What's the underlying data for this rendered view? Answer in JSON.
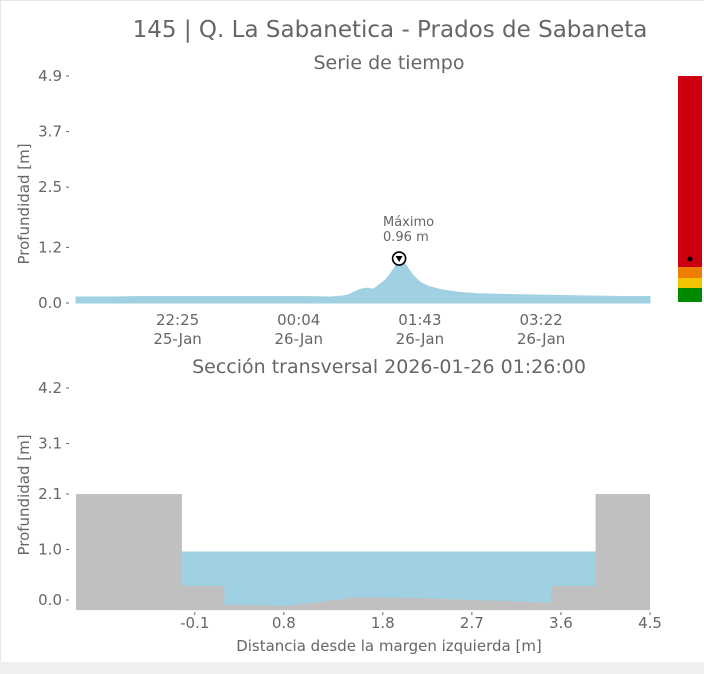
{
  "figure_title": "145 | Q. La Sabanetica - Prados de Sabaneta",
  "colors": {
    "water": "#9fd1e2",
    "terrain": "#c0c0c0",
    "text": "#666666",
    "alert_red": "#cc0010",
    "alert_orange": "#ef7d00",
    "alert_yellow": "#f2c300",
    "alert_green": "#008a00"
  },
  "chart_data": [
    {
      "type": "area",
      "title": "Serie de tiempo",
      "ylabel": "Profundidad [m]",
      "xlabel": "",
      "ylim": [
        0.0,
        4.9
      ],
      "yticks": [
        "0.0",
        "1.2",
        "2.5",
        "3.7",
        "4.9"
      ],
      "ytick_values": [
        0.0,
        1.2,
        2.5,
        3.7,
        4.9
      ],
      "xticks": [
        {
          "time": "22:25",
          "date": "25-Jan"
        },
        {
          "time": "00:04",
          "date": "26-Jan"
        },
        {
          "time": "01:43",
          "date": "26-Jan"
        },
        {
          "time": "03:22",
          "date": "26-Jan"
        }
      ],
      "xlim": [
        "2026-01-25 21:02",
        "2026-01-26 04:51"
      ],
      "series": [
        {
          "x": [
            "2026-01-25 21:02",
            "2026-01-25 21:30",
            "2026-01-25 22:00",
            "2026-01-25 22:25",
            "2026-01-25 23:00",
            "2026-01-25 23:30",
            "2026-01-26 00:04",
            "2026-01-26 00:30",
            "2026-01-26 00:40",
            "2026-01-26 00:45",
            "2026-01-26 00:50",
            "2026-01-26 00:55",
            "2026-01-26 01:00",
            "2026-01-26 01:05",
            "2026-01-26 01:10",
            "2026-01-26 01:15",
            "2026-01-26 01:18",
            "2026-01-26 01:22",
            "2026-01-26 01:26",
            "2026-01-26 01:30",
            "2026-01-26 01:34",
            "2026-01-26 01:38",
            "2026-01-26 01:43",
            "2026-01-26 01:50",
            "2026-01-26 02:00",
            "2026-01-26 02:15",
            "2026-01-26 02:30",
            "2026-01-26 03:00",
            "2026-01-26 03:22",
            "2026-01-26 04:00",
            "2026-01-26 04:30",
            "2026-01-26 04:51"
          ],
          "y": [
            0.13,
            0.13,
            0.14,
            0.14,
            0.14,
            0.14,
            0.14,
            0.13,
            0.15,
            0.18,
            0.25,
            0.3,
            0.32,
            0.3,
            0.4,
            0.5,
            0.6,
            0.75,
            0.96,
            0.88,
            0.72,
            0.58,
            0.45,
            0.36,
            0.29,
            0.23,
            0.2,
            0.18,
            0.17,
            0.15,
            0.14,
            0.14
          ]
        }
      ],
      "annotation": {
        "label": "Máximo",
        "value_label": "0.96 m",
        "time": "2026-01-26 01:26",
        "value": 0.96
      },
      "alert_levels": {
        "bands": [
          {
            "color": "green",
            "from": 0.0,
            "to": 0.3
          },
          {
            "color": "yellow",
            "from": 0.3,
            "to": 0.6
          },
          {
            "color": "orange",
            "from": 0.6,
            "to": 0.85
          },
          {
            "color": "red",
            "from": 0.85,
            "to": 5.0
          }
        ],
        "current": 0.96
      }
    },
    {
      "type": "area",
      "title": "Sección transversal 2026-01-26 01:26:00",
      "xlabel": "Distancia desde la margen izquierda [m]",
      "ylabel": "Profundidad [m]",
      "ylim": [
        -0.2,
        4.2
      ],
      "yticks": [
        "0.0",
        "1.0",
        "2.1",
        "3.1",
        "4.2"
      ],
      "ytick_values": [
        0.0,
        1.0,
        2.1,
        3.1,
        4.2
      ],
      "xlim": [
        -1.3,
        4.5
      ],
      "xticks": [
        "-0.1",
        "0.8",
        "1.8",
        "2.7",
        "3.6",
        "4.5"
      ],
      "xtick_values": [
        -0.1,
        0.8,
        1.8,
        2.7,
        3.6,
        4.5
      ],
      "water_level": 0.96,
      "terrain": {
        "x": [
          -1.3,
          -0.23,
          -0.23,
          0.2,
          0.2,
          0.5,
          0.8,
          1.1,
          1.5,
          1.8,
          2.2,
          2.7,
          3.1,
          3.4,
          3.5,
          3.5,
          3.95,
          3.95,
          4.5
        ],
        "y": [
          2.1,
          2.1,
          0.28,
          0.28,
          -0.1,
          -0.1,
          -0.12,
          -0.05,
          0.05,
          0.05,
          0.04,
          0.0,
          -0.02,
          -0.05,
          -0.05,
          0.28,
          0.28,
          2.1,
          2.1
        ]
      }
    }
  ]
}
